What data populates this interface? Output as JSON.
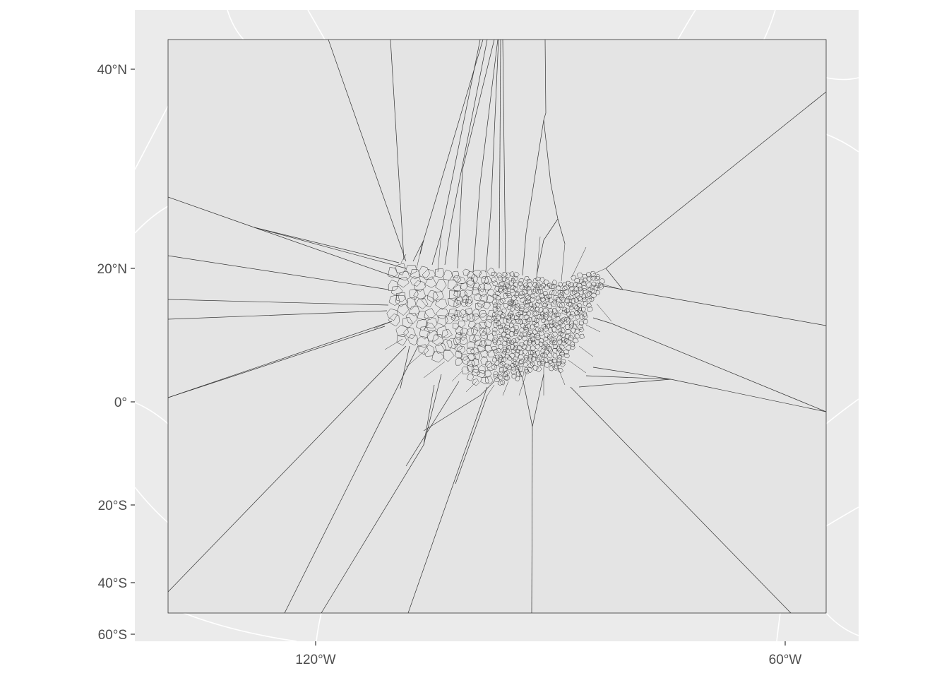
{
  "map": {
    "projection": "lambert conformal conic (curved graticule)",
    "panel_background": "#ebebeb",
    "graticule_color": "#ffffff",
    "polygon_fill": "#e4e4e4",
    "polygon_stroke": "#333333",
    "features": "Voronoi tessellation of US county points, clipped to a rectangular bounding box",
    "y_axis_labels": [
      "40°N",
      "20°N",
      "0°",
      "20°S",
      "40°S",
      "60°S"
    ],
    "x_axis_labels": [
      "120°W",
      "60°W"
    ]
  }
}
